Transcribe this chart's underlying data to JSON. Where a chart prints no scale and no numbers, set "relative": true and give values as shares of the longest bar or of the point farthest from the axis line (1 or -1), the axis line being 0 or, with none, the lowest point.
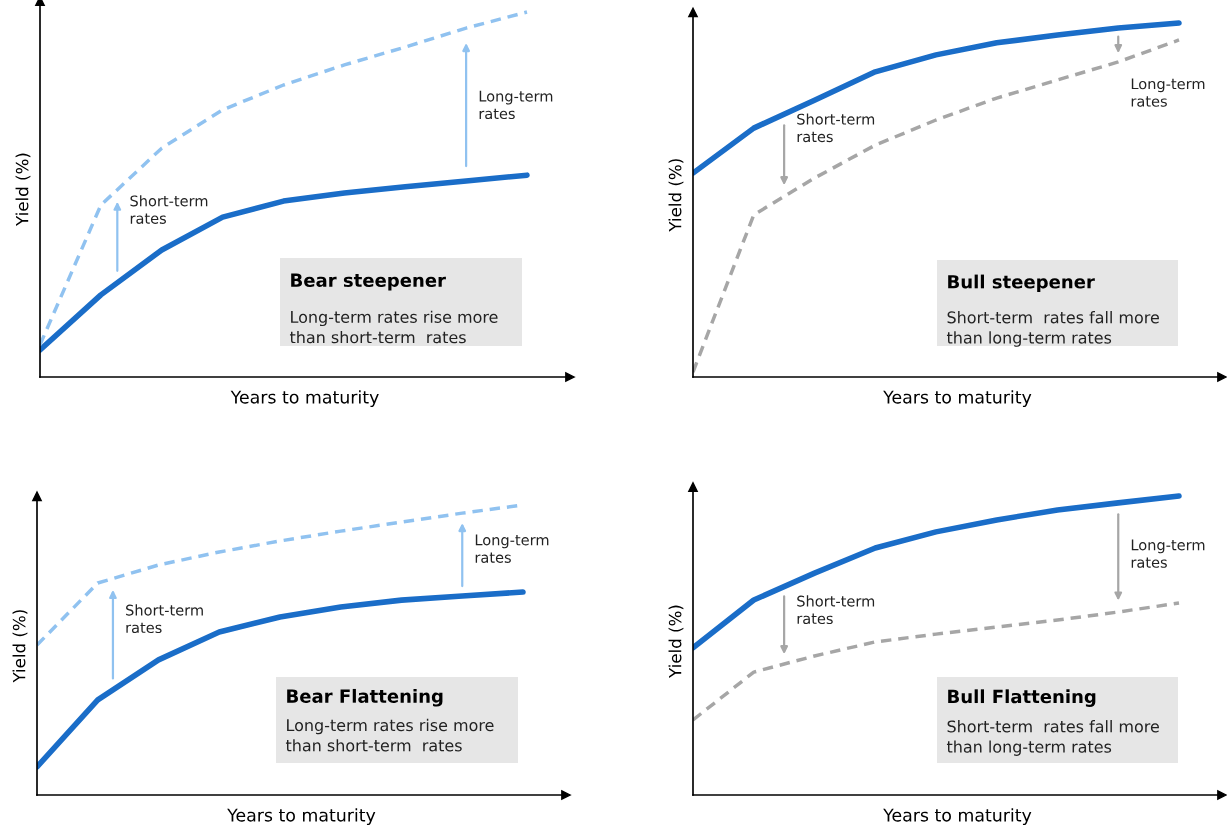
{
  "chart_data": [
    {
      "type": "line",
      "title": "Bear steepener",
      "subtitle": "Long-term rates rise more\nthan short-term  rates",
      "xlabel": "Years to maturity",
      "ylabel": "Yield (%)",
      "relative": true,
      "categories": [
        null,
        null,
        null,
        null,
        null,
        null,
        null,
        null,
        null
      ],
      "annotations": [
        "Short-term\nrates",
        "Long-term\nrates"
      ],
      "series": [
        {
          "color": "#1a6dc8",
          "line_style": "solid",
          "values": [
            0.074,
            0.225,
            0.348,
            0.438,
            0.482,
            0.504,
            0.521,
            0.537,
            0.553
          ]
        },
        {
          "color": "#90c2f0",
          "line_style": "dashed",
          "values": [
            0.088,
            0.471,
            0.627,
            0.732,
            0.8,
            0.855,
            0.904,
            0.956,
            1.0
          ]
        }
      ]
    },
    {
      "type": "line",
      "title": "Bull steepener",
      "subtitle": "Short-term  rates fall more\nthan long-term rates",
      "xlabel": "Years to maturity",
      "ylabel": "Yield (%)",
      "relative": true,
      "categories": [
        null,
        null,
        null,
        null,
        null,
        null,
        null,
        null,
        null
      ],
      "annotations": [
        "Short-term\nrates",
        "Long-term\nrates"
      ],
      "series": [
        {
          "color": "#1a6dc8",
          "line_style": "solid",
          "values": [
            0.576,
            0.703,
            0.782,
            0.862,
            0.91,
            0.944,
            0.966,
            0.986,
            1.0
          ]
        },
        {
          "color": "#a6a6a6",
          "line_style": "dashed",
          "values": [
            0.014,
            0.458,
            0.562,
            0.655,
            0.726,
            0.788,
            0.839,
            0.89,
            0.952
          ]
        }
      ]
    },
    {
      "type": "line",
      "title": "Bear Flattening",
      "subtitle": "Long-term rates rise more\nthan short-term  rates",
      "xlabel": "Years to maturity",
      "ylabel": "Yield (%)",
      "relative": true,
      "categories": [
        null,
        null,
        null,
        null,
        null,
        null,
        null,
        null,
        null
      ],
      "annotations": [
        "Short-term\nrates",
        "Long-term\nrates"
      ],
      "series": [
        {
          "color": "#1a6dc8",
          "line_style": "solid",
          "values": [
            0.097,
            0.328,
            0.466,
            0.562,
            0.614,
            0.648,
            0.672,
            0.686,
            0.7
          ]
        },
        {
          "color": "#90c2f0",
          "line_style": "dashed",
          "values": [
            0.517,
            0.731,
            0.793,
            0.838,
            0.876,
            0.91,
            0.941,
            0.972,
            1.0
          ]
        }
      ]
    },
    {
      "type": "line",
      "title": "Bull Flattening",
      "subtitle": "Short-term  rates fall more\nthan long-term rates",
      "xlabel": "Years to maturity",
      "ylabel": "Yield (%)",
      "relative": true,
      "categories": [
        null,
        null,
        null,
        null,
        null,
        null,
        null,
        null,
        null
      ],
      "annotations": [
        "Short-term\nrates",
        "Long-term\nrates"
      ],
      "series": [
        {
          "color": "#1a6dc8",
          "line_style": "solid",
          "values": [
            0.492,
            0.652,
            0.742,
            0.826,
            0.88,
            0.92,
            0.953,
            0.977,
            1.0
          ]
        },
        {
          "color": "#a6a6a6",
          "line_style": "dashed",
          "values": [
            0.251,
            0.411,
            0.465,
            0.512,
            0.538,
            0.562,
            0.585,
            0.612,
            0.642
          ]
        }
      ]
    }
  ]
}
